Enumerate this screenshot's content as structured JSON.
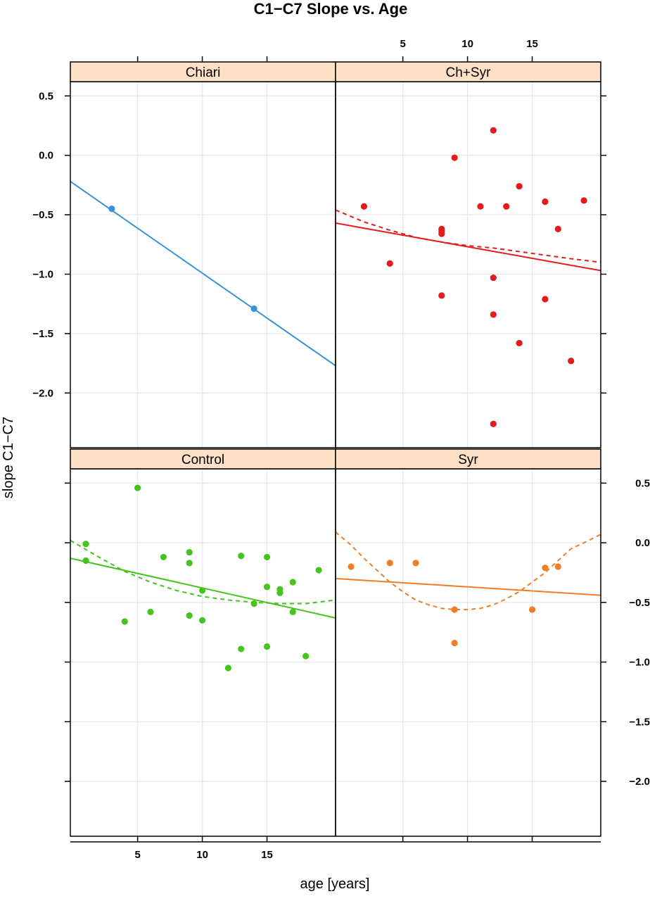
{
  "chart_data": {
    "type": "scatter",
    "title": "C1−C7 Slope vs. Age",
    "xlabel": "age [years]",
    "ylabel": "slope C1−C7",
    "xlim": [
      -0.2,
      20.3
    ],
    "ylim": [
      -2.46,
      0.62
    ],
    "x_ticks": [
      5,
      10,
      15
    ],
    "y_ticks": [
      0.5,
      0.0,
      -0.5,
      -1.0,
      -1.5,
      -2.0
    ],
    "x_tick_labels": [
      "5",
      "10",
      "15"
    ],
    "y_tick_labels": [
      "0.5",
      "0.0",
      "−0.5",
      "−1.0",
      "−1.5",
      "−2.0"
    ],
    "grid": true,
    "line_styles": {
      "solid": "linear fit",
      "dashed": "quadratic fit"
    },
    "panels": [
      {
        "name": "Chiari",
        "color": "#3a90d9",
        "points": [
          [
            3,
            -0.45
          ],
          [
            14,
            -1.29
          ]
        ],
        "linear_fit": [
          [
            -0.2,
            -0.22
          ],
          [
            20.3,
            -1.77
          ]
        ],
        "quadratic_fit": []
      },
      {
        "name": "Ch+Syr",
        "color": "#e41a1c",
        "points": [
          [
            2,
            -0.43
          ],
          [
            4,
            -0.91
          ],
          [
            8,
            -0.62
          ],
          [
            8,
            -0.64
          ],
          [
            8,
            -0.66
          ],
          [
            8,
            -1.18
          ],
          [
            9,
            -0.02
          ],
          [
            11,
            -0.43
          ],
          [
            12,
            0.21
          ],
          [
            12,
            -1.03
          ],
          [
            12,
            -1.34
          ],
          [
            12,
            -2.26
          ],
          [
            13,
            -0.43
          ],
          [
            14,
            -0.26
          ],
          [
            14,
            -1.58
          ],
          [
            16,
            -0.39
          ],
          [
            16,
            -1.21
          ],
          [
            17,
            -0.62
          ],
          [
            18,
            -1.73
          ],
          [
            19,
            -0.38
          ]
        ],
        "linear_fit": [
          [
            -0.2,
            -0.57
          ],
          [
            20.3,
            -0.97
          ]
        ],
        "quadratic_fit": [
          [
            -0.2,
            -0.46
          ],
          [
            2,
            -0.56
          ],
          [
            4,
            -0.63
          ],
          [
            6,
            -0.69
          ],
          [
            8,
            -0.73
          ],
          [
            10,
            -0.76
          ],
          [
            12,
            -0.78
          ],
          [
            14,
            -0.81
          ],
          [
            16,
            -0.84
          ],
          [
            18,
            -0.87
          ],
          [
            20.3,
            -0.9
          ]
        ]
      },
      {
        "name": "Control",
        "color": "#44c41c",
        "points": [
          [
            1,
            -0.01
          ],
          [
            1,
            -0.15
          ],
          [
            4,
            -0.66
          ],
          [
            5,
            0.46
          ],
          [
            6,
            -0.58
          ],
          [
            7,
            -0.12
          ],
          [
            9,
            -0.08
          ],
          [
            9,
            -0.17
          ],
          [
            9,
            -0.61
          ],
          [
            10,
            -0.4
          ],
          [
            10,
            -0.65
          ],
          [
            12,
            -1.05
          ],
          [
            13,
            -0.11
          ],
          [
            13,
            -0.89
          ],
          [
            14,
            -0.51
          ],
          [
            15,
            -0.12
          ],
          [
            15,
            -0.37
          ],
          [
            15,
            -0.87
          ],
          [
            16,
            -0.39
          ],
          [
            16,
            -0.42
          ],
          [
            17,
            -0.33
          ],
          [
            17,
            -0.58
          ],
          [
            18,
            -0.95
          ],
          [
            19,
            -0.23
          ]
        ],
        "linear_fit": [
          [
            -0.2,
            -0.13
          ],
          [
            20.3,
            -0.63
          ]
        ],
        "quadratic_fit": [
          [
            -0.2,
            0.02
          ],
          [
            2,
            -0.12
          ],
          [
            4,
            -0.24
          ],
          [
            6,
            -0.33
          ],
          [
            8,
            -0.4
          ],
          [
            10,
            -0.45
          ],
          [
            12,
            -0.48
          ],
          [
            14,
            -0.5
          ],
          [
            16,
            -0.51
          ],
          [
            18,
            -0.51
          ],
          [
            20.3,
            -0.48
          ]
        ]
      },
      {
        "name": "Syr",
        "color": "#f07e26",
        "points": [
          [
            1,
            -0.2
          ],
          [
            4,
            -0.17
          ],
          [
            6,
            -0.17
          ],
          [
            9,
            -0.56
          ],
          [
            9,
            -0.84
          ],
          [
            15,
            -0.56
          ],
          [
            16,
            -0.21
          ],
          [
            17,
            -0.2
          ]
        ],
        "linear_fit": [
          [
            -0.2,
            -0.3
          ],
          [
            20.3,
            -0.44
          ]
        ],
        "quadratic_fit": [
          [
            -0.2,
            0.09
          ],
          [
            1,
            -0.02
          ],
          [
            2,
            -0.13
          ],
          [
            3,
            -0.23
          ],
          [
            4,
            -0.33
          ],
          [
            5,
            -0.41
          ],
          [
            6,
            -0.48
          ],
          [
            7,
            -0.52
          ],
          [
            8,
            -0.55
          ],
          [
            9,
            -0.56
          ],
          [
            10,
            -0.56
          ],
          [
            11,
            -0.55
          ],
          [
            12,
            -0.52
          ],
          [
            13,
            -0.47
          ],
          [
            14,
            -0.41
          ],
          [
            15,
            -0.33
          ],
          [
            16,
            -0.25
          ],
          [
            17,
            -0.15
          ],
          [
            18,
            -0.05
          ],
          [
            19,
            0.0
          ],
          [
            20.3,
            0.07
          ]
        ]
      }
    ]
  }
}
